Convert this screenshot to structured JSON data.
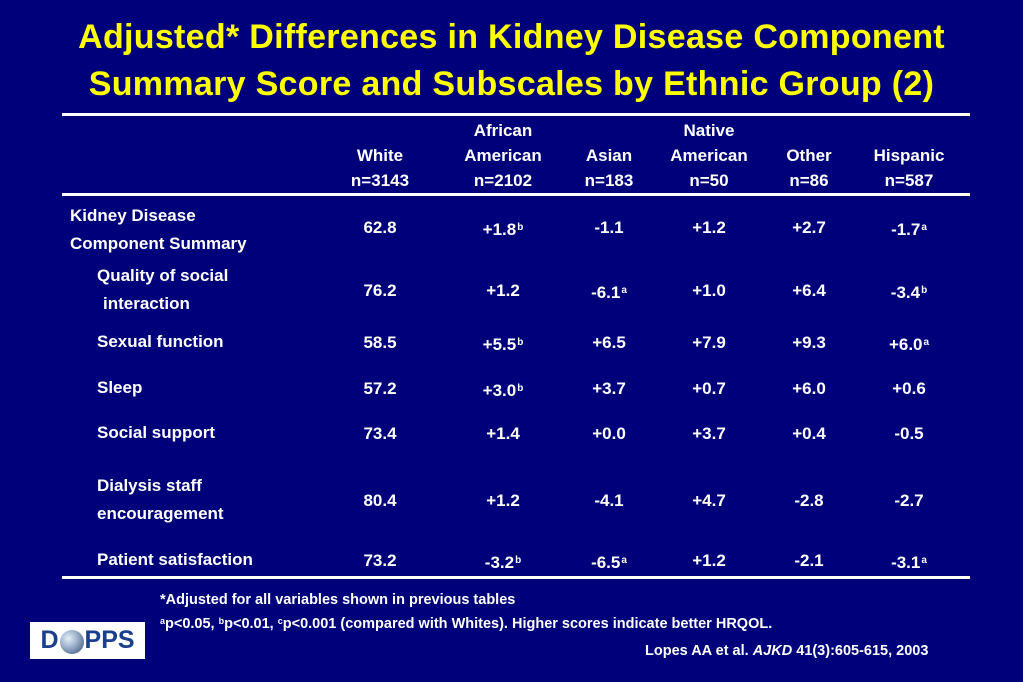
{
  "title": {
    "line1": "Adjusted* Differences in Kidney Disease Component",
    "line2": "Summary Score and Subscales by Ethnic Group (2)"
  },
  "table": {
    "columns": [
      {
        "line1": "",
        "line2": "White",
        "line3": "n=3143"
      },
      {
        "line1": "African",
        "line2": "American",
        "line3": "n=2102"
      },
      {
        "line1": "",
        "line2": "Asian",
        "line3": "n=183"
      },
      {
        "line1": "Native",
        "line2": "American",
        "line3": "n=50"
      },
      {
        "line1": "",
        "line2": "Other",
        "line3": "n=86"
      },
      {
        "line1": "",
        "line2": "Hispanic",
        "line3": "n=587"
      }
    ],
    "rows": [
      {
        "label1": "Kidney Disease",
        "label2": "Component Summary",
        "cells": [
          {
            "v": "62.8",
            "s": ""
          },
          {
            "v": "+1.8",
            "s": "b"
          },
          {
            "v": "-1.1",
            "s": ""
          },
          {
            "v": "+1.2",
            "s": ""
          },
          {
            "v": "+2.7",
            "s": ""
          },
          {
            "v": "-1.7",
            "s": "a"
          }
        ]
      },
      {
        "label1": "Quality of social",
        "label2": "interaction",
        "cells": [
          {
            "v": "76.2",
            "s": ""
          },
          {
            "v": "+1.2",
            "s": ""
          },
          {
            "v": "-6.1",
            "s": "a"
          },
          {
            "v": "+1.0",
            "s": ""
          },
          {
            "v": "+6.4",
            "s": ""
          },
          {
            "v": "-3.4",
            "s": "b"
          }
        ]
      },
      {
        "label1": "Sexual function",
        "label2": "",
        "cells": [
          {
            "v": "58.5",
            "s": ""
          },
          {
            "v": "+5.5",
            "s": "b"
          },
          {
            "v": "+6.5",
            "s": ""
          },
          {
            "v": "+7.9",
            "s": ""
          },
          {
            "v": "+9.3",
            "s": ""
          },
          {
            "v": "+6.0",
            "s": "a"
          }
        ]
      },
      {
        "label1": "Sleep",
        "label2": "",
        "cells": [
          {
            "v": "57.2",
            "s": ""
          },
          {
            "v": "+3.0",
            "s": "b"
          },
          {
            "v": "+3.7",
            "s": ""
          },
          {
            "v": "+0.7",
            "s": ""
          },
          {
            "v": "+6.0",
            "s": ""
          },
          {
            "v": "+0.6",
            "s": ""
          }
        ]
      },
      {
        "label1": "Social support",
        "label2": "",
        "cells": [
          {
            "v": "73.4",
            "s": ""
          },
          {
            "v": "+1.4",
            "s": ""
          },
          {
            "v": "+0.0",
            "s": ""
          },
          {
            "v": "+3.7",
            "s": ""
          },
          {
            "v": "+0.4",
            "s": ""
          },
          {
            "v": "-0.5",
            "s": ""
          }
        ]
      },
      {
        "label1": "Dialysis staff",
        "label2": "encouragement",
        "cells": [
          {
            "v": "80.4",
            "s": ""
          },
          {
            "v": "+1.2",
            "s": ""
          },
          {
            "v": "-4.1",
            "s": ""
          },
          {
            "v": "+4.7",
            "s": ""
          },
          {
            "v": "-2.8",
            "s": ""
          },
          {
            "v": "-2.7",
            "s": ""
          }
        ]
      },
      {
        "label1": "Patient satisfaction",
        "label2": "",
        "cells": [
          {
            "v": "73.2",
            "s": ""
          },
          {
            "v": "-3.2",
            "s": "b"
          },
          {
            "v": "-6.5",
            "s": "a"
          },
          {
            "v": "+1.2",
            "s": ""
          },
          {
            "v": "-2.1",
            "s": ""
          },
          {
            "v": "-3.1",
            "s": "a"
          }
        ]
      }
    ]
  },
  "footnotes": {
    "adjusted": "*Adjusted for all variables shown in previous tables",
    "sig_a_sup": "a",
    "sig_a": "p<0.05, ",
    "sig_b_sup": "b",
    "sig_b": "p<0.01, ",
    "sig_c_sup": "c",
    "sig_c": "p<0.001 (compared with Whites).  Higher scores indicate better HRQOL."
  },
  "citation": {
    "authors": "Lopes AA et al. ",
    "journal": "AJKD",
    "details": " 41(3):605-615, 2003"
  },
  "logo": {
    "left": "D",
    "right": "PPS"
  },
  "colors": {
    "background": "#00007a",
    "title": "#ffff00",
    "text": "#ffffff"
  }
}
